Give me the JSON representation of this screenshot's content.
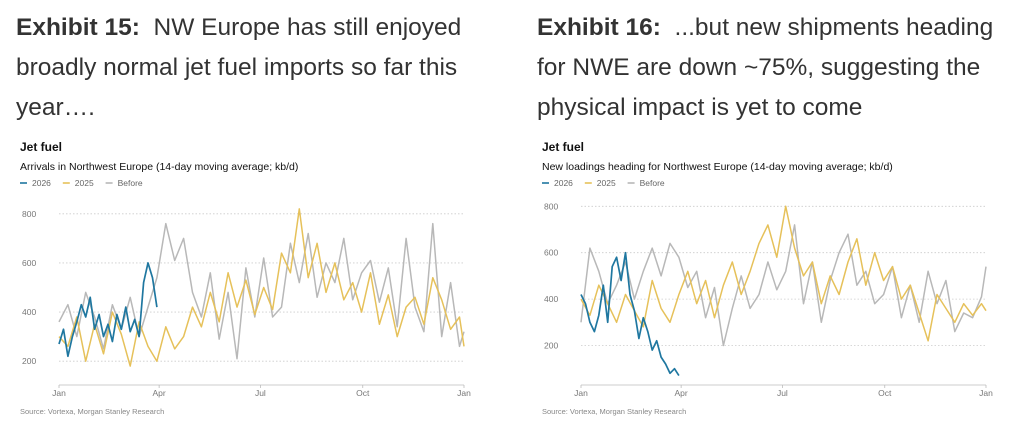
{
  "exhibits": [
    {
      "label": "Exhibit 15:",
      "caption": "NW Europe has still enjoyed broadly normal jet fuel imports so far this year…."
    },
    {
      "label": "Exhibit 16:",
      "caption": "...but new shipments heading for NWE are down ~75%, suggesting the physical impact is yet to come"
    }
  ],
  "chart_data": [
    {
      "type": "line",
      "title": "Jet fuel",
      "subtitle": "Arrivals in Northwest Europe (14-day moving average; kb/d)",
      "source": "Source: Vortexa, Morgan Stanley Research",
      "x_ticks": [
        "Jan",
        "Apr",
        "Jul",
        "Oct",
        "Jan"
      ],
      "y_ticks": [
        200,
        400,
        600,
        800
      ],
      "ylim": [
        160,
        840
      ],
      "grid": "horizontal dotted",
      "legend": "top-left",
      "series": [
        {
          "name": "2026",
          "color": "#1f77a0",
          "x_days": [
            0,
            4,
            8,
            12,
            16,
            20,
            24,
            28,
            32,
            36,
            40,
            44,
            48,
            52,
            56,
            60,
            64,
            68,
            72,
            76,
            80,
            84,
            88
          ],
          "values": [
            270,
            330,
            220,
            300,
            360,
            430,
            380,
            460,
            330,
            390,
            300,
            350,
            280,
            390,
            330,
            420,
            320,
            370,
            300,
            520,
            600,
            540,
            420
          ]
        },
        {
          "name": "2025",
          "color": "#e6c15a",
          "x_days": [
            0,
            8,
            16,
            24,
            32,
            40,
            48,
            56,
            64,
            72,
            80,
            88,
            96,
            104,
            112,
            120,
            128,
            136,
            144,
            152,
            160,
            168,
            176,
            184,
            192,
            200,
            208,
            216,
            224,
            232,
            240,
            248,
            256,
            264,
            272,
            280,
            288,
            296,
            304,
            312,
            320,
            328,
            336,
            344,
            352,
            360,
            364
          ],
          "values": [
            300,
            260,
            380,
            200,
            350,
            230,
            400,
            310,
            180,
            360,
            260,
            200,
            340,
            250,
            300,
            420,
            340,
            480,
            360,
            560,
            420,
            530,
            390,
            500,
            410,
            640,
            560,
            820,
            540,
            680,
            480,
            600,
            450,
            520,
            400,
            560,
            350,
            470,
            300,
            420,
            460,
            350,
            540,
            450,
            330,
            380,
            260
          ]
        },
        {
          "name": "Before",
          "color": "#b8b8b8",
          "x_days": [
            0,
            8,
            16,
            24,
            32,
            40,
            48,
            56,
            64,
            72,
            80,
            88,
            96,
            104,
            112,
            120,
            128,
            136,
            144,
            152,
            160,
            168,
            176,
            184,
            192,
            200,
            208,
            216,
            224,
            232,
            240,
            248,
            256,
            264,
            272,
            280,
            288,
            296,
            304,
            312,
            320,
            328,
            336,
            344,
            352,
            360,
            364
          ],
          "values": [
            360,
            430,
            300,
            480,
            380,
            250,
            430,
            330,
            460,
            300,
            420,
            540,
            760,
            610,
            700,
            480,
            380,
            560,
            290,
            480,
            210,
            580,
            380,
            620,
            380,
            420,
            680,
            520,
            720,
            460,
            600,
            520,
            700,
            450,
            560,
            610,
            440,
            580,
            340,
            700,
            420,
            320,
            760,
            300,
            520,
            260,
            320
          ]
        }
      ]
    },
    {
      "type": "line",
      "title": "Jet fuel",
      "subtitle": "New loadings heading for Northwest Europe (14-day moving average; kb/d)",
      "source": "Source: Vortexa, Morgan Stanley Research",
      "x_ticks": [
        "Jan",
        "Apr",
        "Jul",
        "Oct",
        "Jan"
      ],
      "y_ticks": [
        200,
        400,
        600,
        800
      ],
      "ylim": [
        90,
        810
      ],
      "grid": "horizontal dotted",
      "legend": "top-left",
      "series": [
        {
          "name": "2026",
          "color": "#1f77a0",
          "x_days": [
            0,
            4,
            8,
            12,
            16,
            20,
            24,
            28,
            32,
            36,
            40,
            44,
            48,
            52,
            56,
            60,
            64,
            68,
            72,
            76,
            80,
            84,
            88
          ],
          "values": [
            420,
            380,
            300,
            260,
            330,
            460,
            300,
            540,
            580,
            480,
            600,
            420,
            350,
            230,
            320,
            260,
            180,
            220,
            150,
            120,
            80,
            100,
            70
          ]
        },
        {
          "name": "2025",
          "color": "#e6c15a",
          "x_days": [
            0,
            8,
            16,
            24,
            32,
            40,
            48,
            56,
            64,
            72,
            80,
            88,
            96,
            104,
            112,
            120,
            128,
            136,
            144,
            152,
            160,
            168,
            176,
            184,
            192,
            200,
            208,
            216,
            224,
            232,
            240,
            248,
            256,
            264,
            272,
            280,
            288,
            296,
            304,
            312,
            320,
            328,
            336,
            344,
            352,
            360,
            364
          ],
          "values": [
            400,
            330,
            460,
            380,
            300,
            420,
            350,
            280,
            480,
            360,
            300,
            420,
            520,
            380,
            480,
            320,
            460,
            560,
            420,
            520,
            640,
            720,
            580,
            800,
            620,
            500,
            560,
            380,
            500,
            420,
            560,
            660,
            460,
            600,
            480,
            540,
            400,
            460,
            340,
            220,
            420,
            360,
            300,
            380,
            330,
            380,
            350
          ]
        },
        {
          "name": "Before",
          "color": "#b8b8b8",
          "x_days": [
            0,
            8,
            16,
            24,
            32,
            40,
            48,
            56,
            64,
            72,
            80,
            88,
            96,
            104,
            112,
            120,
            128,
            136,
            144,
            152,
            160,
            168,
            176,
            184,
            192,
            200,
            208,
            216,
            224,
            232,
            240,
            248,
            256,
            264,
            272,
            280,
            288,
            296,
            304,
            312,
            320,
            328,
            336,
            344,
            352,
            360,
            364
          ],
          "values": [
            300,
            620,
            520,
            380,
            460,
            560,
            400,
            520,
            620,
            500,
            640,
            580,
            450,
            520,
            320,
            450,
            200,
            360,
            500,
            360,
            420,
            560,
            440,
            520,
            720,
            380,
            560,
            300,
            480,
            600,
            680,
            460,
            520,
            380,
            420,
            540,
            320,
            460,
            300,
            520,
            380,
            480,
            260,
            340,
            320,
            410,
            540
          ]
        }
      ]
    }
  ]
}
